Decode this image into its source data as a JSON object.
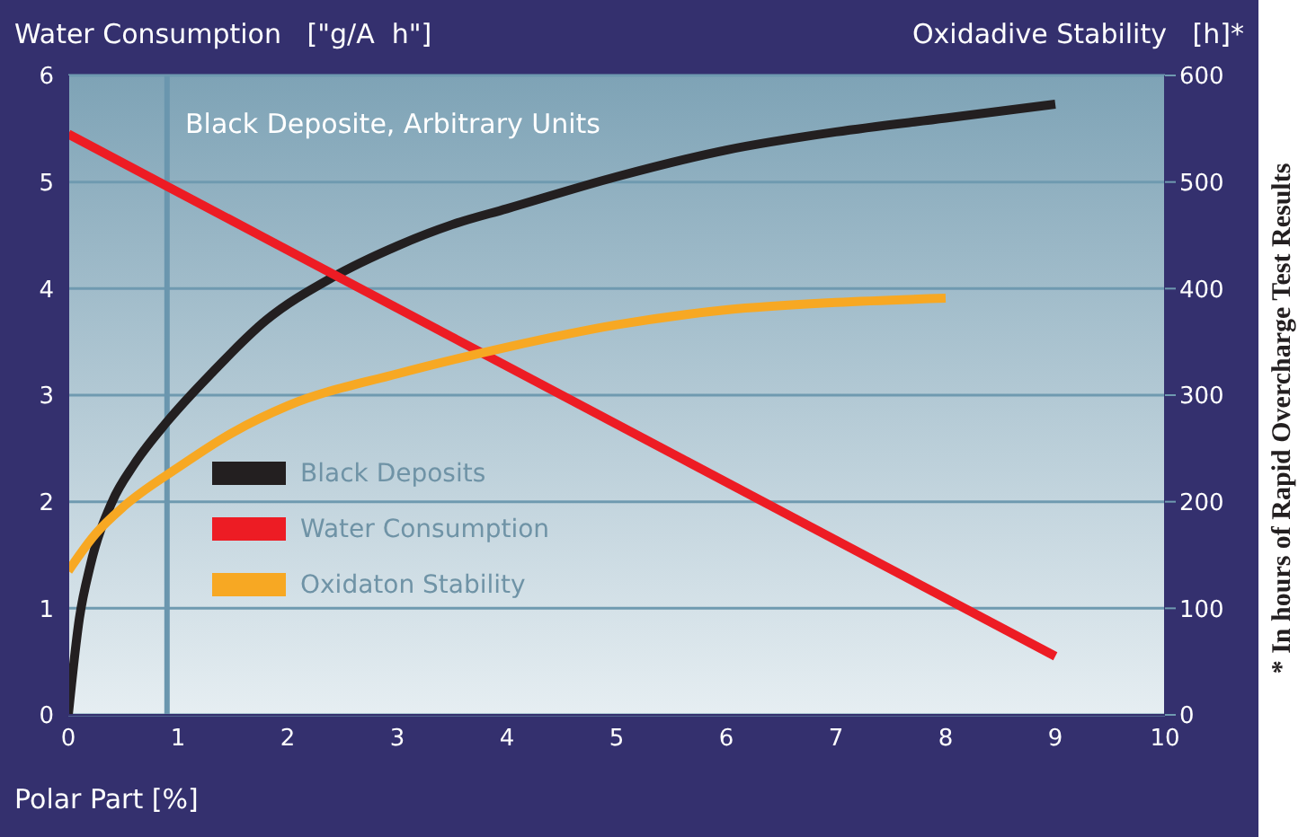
{
  "chart_data": {
    "type": "line",
    "ylabel": "Water Consumption   [\"g/A  h\"]",
    "y2label": "Oxidadive Stability   [h]*",
    "xlabel": "Polar Part [%]",
    "annotations": [
      "Black Deposite, Arbitrary Units",
      "* In hours of Rapid Overcharge Test Results"
    ],
    "xlim": [
      0,
      10
    ],
    "xticks": [
      0,
      1,
      2,
      3,
      4,
      5,
      6,
      7,
      8,
      9,
      10
    ],
    "ylim": [
      0,
      6
    ],
    "yticks": [
      0,
      1,
      2,
      3,
      4,
      5,
      6
    ],
    "y2lim": [
      0,
      600
    ],
    "y2ticks": [
      0,
      100,
      200,
      300,
      400,
      500,
      600
    ],
    "grid": "y",
    "legend": "left",
    "marker": "none",
    "line_style": "solid",
    "ref_lines": [
      {
        "axis": "x",
        "value": 0.9,
        "color": "#6a96ae"
      }
    ],
    "series": [
      {
        "name": "Black Deposits",
        "color": "#231f20",
        "x": [
          0,
          0.1,
          0.2,
          0.4,
          0.6,
          0.9,
          1.3,
          1.8,
          2.4,
          3,
          3.5,
          4,
          5,
          6,
          7,
          8,
          9
        ],
        "values": [
          0,
          0.9,
          1.4,
          2.0,
          2.35,
          2.75,
          3.2,
          3.7,
          4.1,
          4.4,
          4.6,
          4.75,
          5.05,
          5.3,
          5.47,
          5.6,
          5.73
        ]
      },
      {
        "name": "Water Consumption",
        "color": "#ed1c24",
        "x": [
          0,
          9
        ],
        "values": [
          5.45,
          0.55
        ]
      },
      {
        "name": "Oxidaton Stability",
        "color": "#f7a823",
        "axis": "y2",
        "x": [
          0,
          0.25,
          0.5,
          1,
          1.5,
          2,
          3,
          4,
          5,
          6,
          7,
          8
        ],
        "values": [
          135,
          170,
          195,
          232,
          265,
          290,
          320,
          345,
          366,
          380,
          387,
          391
        ]
      }
    ]
  }
}
